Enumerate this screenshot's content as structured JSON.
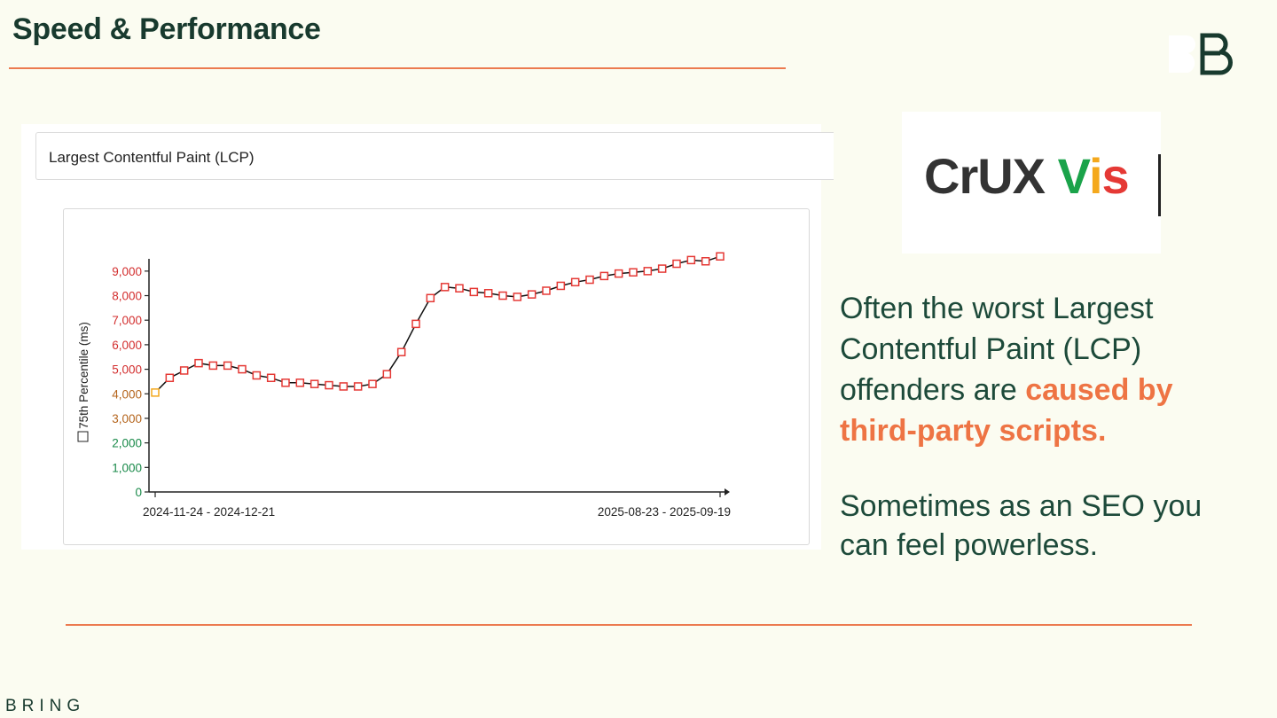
{
  "slide": {
    "title": "Speed & Performance",
    "footer_brand": "BRING"
  },
  "screenshot": {
    "metric_select_value": "Largest Contentful Paint (LCP)"
  },
  "logo": {
    "text_dark": "CrUX ",
    "text_v": "V",
    "text_i": "i",
    "text_s": "s",
    "colors": {
      "dark": "#333333",
      "v": "#1aa34a",
      "i": "#f4a81c",
      "s": "#e53935"
    }
  },
  "copy": {
    "line1": "Often the worst Largest Contentful Paint (LCP) offenders are ",
    "accent": "caused by third-party scripts.",
    "line2": "Sometimes as an SEO you can feel powerless."
  },
  "chart_data": {
    "type": "line",
    "ylabel": "75th Percentile (ms)",
    "ylim": [
      0,
      9500
    ],
    "yticks": [
      0,
      1000,
      2000,
      3000,
      4000,
      5000,
      6000,
      7000,
      8000,
      9000
    ],
    "ytick_labels": [
      "0",
      "1,000",
      "2,000",
      "3,000",
      "4,000",
      "5,000",
      "6,000",
      "7,000",
      "8,000",
      "9,000"
    ],
    "ytick_colors": [
      "#1a8a4a",
      "#1a8a4a",
      "#1a8a4a",
      "#b5651d",
      "#b5651d",
      "#d32f2f",
      "#d32f2f",
      "#d32f2f",
      "#d32f2f",
      "#d32f2f"
    ],
    "x_first_label": "2024-11-24 - 2024-12-21",
    "x_last_label": "2025-08-23 - 2025-09-19",
    "grid": false,
    "series": [
      {
        "values": [
          4050,
          4650,
          4950,
          5250,
          5150,
          5150,
          5000,
          4750,
          4650,
          4450,
          4450,
          4400,
          4350,
          4300,
          4300,
          4400,
          4800,
          5700,
          6850,
          7900,
          8350,
          8300,
          8150,
          8100,
          8000,
          7950,
          8050,
          8200,
          8400,
          8550,
          8650,
          8800,
          8900,
          8950,
          9000,
          9100,
          9300,
          9450,
          9400,
          9600
        ],
        "first_point_color": "#f4a81c",
        "point_color": "#e53935"
      }
    ]
  }
}
